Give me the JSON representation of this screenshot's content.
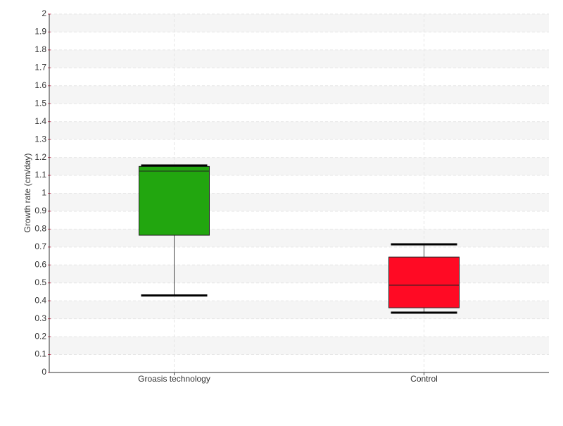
{
  "chart_data": {
    "type": "box",
    "y_label": "Growth rate (cm/day)",
    "categories": [
      "Groasis technology",
      "Control"
    ],
    "boxes": [
      {
        "min": 0.43,
        "q1": 0.766,
        "median": 1.124,
        "q3": 1.15,
        "max": 1.155,
        "color": "#22a60f"
      },
      {
        "min": 0.334,
        "q1": 0.361,
        "median": 0.487,
        "q3": 0.644,
        "max": 0.715,
        "color": "#ff0a24"
      }
    ],
    "ylim": [
      0,
      2
    ],
    "yticks": [
      0,
      0.1,
      0.2,
      0.3,
      0.4,
      0.5,
      0.6,
      0.7,
      0.8,
      0.9,
      1,
      1.1,
      1.2,
      1.3,
      1.4,
      1.5,
      1.6,
      1.7,
      1.8,
      1.9,
      2
    ],
    "grid": true
  }
}
